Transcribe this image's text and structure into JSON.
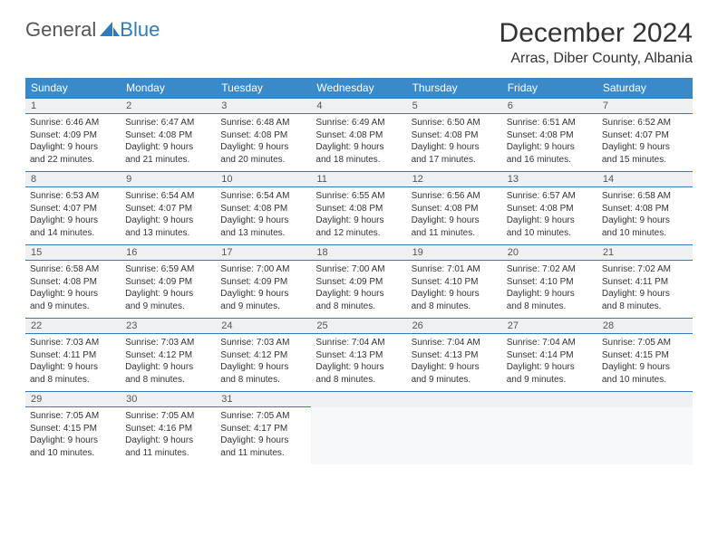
{
  "logo": {
    "part1": "General",
    "part2": "Blue"
  },
  "title": "December 2024",
  "location": "Arras, Diber County, Albania",
  "colors": {
    "header_bg": "#3a8ac9",
    "rule": "#2d7cc1",
    "number_bg": "#eef0f2",
    "text": "#333333"
  },
  "day_labels": [
    "Sunday",
    "Monday",
    "Tuesday",
    "Wednesday",
    "Thursday",
    "Friday",
    "Saturday"
  ],
  "weeks": [
    [
      {
        "n": "1",
        "sr": "Sunrise: 6:46 AM",
        "ss": "Sunset: 4:09 PM",
        "d1": "Daylight: 9 hours",
        "d2": "and 22 minutes."
      },
      {
        "n": "2",
        "sr": "Sunrise: 6:47 AM",
        "ss": "Sunset: 4:08 PM",
        "d1": "Daylight: 9 hours",
        "d2": "and 21 minutes."
      },
      {
        "n": "3",
        "sr": "Sunrise: 6:48 AM",
        "ss": "Sunset: 4:08 PM",
        "d1": "Daylight: 9 hours",
        "d2": "and 20 minutes."
      },
      {
        "n": "4",
        "sr": "Sunrise: 6:49 AM",
        "ss": "Sunset: 4:08 PM",
        "d1": "Daylight: 9 hours",
        "d2": "and 18 minutes."
      },
      {
        "n": "5",
        "sr": "Sunrise: 6:50 AM",
        "ss": "Sunset: 4:08 PM",
        "d1": "Daylight: 9 hours",
        "d2": "and 17 minutes."
      },
      {
        "n": "6",
        "sr": "Sunrise: 6:51 AM",
        "ss": "Sunset: 4:08 PM",
        "d1": "Daylight: 9 hours",
        "d2": "and 16 minutes."
      },
      {
        "n": "7",
        "sr": "Sunrise: 6:52 AM",
        "ss": "Sunset: 4:07 PM",
        "d1": "Daylight: 9 hours",
        "d2": "and 15 minutes."
      }
    ],
    [
      {
        "n": "8",
        "sr": "Sunrise: 6:53 AM",
        "ss": "Sunset: 4:07 PM",
        "d1": "Daylight: 9 hours",
        "d2": "and 14 minutes."
      },
      {
        "n": "9",
        "sr": "Sunrise: 6:54 AM",
        "ss": "Sunset: 4:07 PM",
        "d1": "Daylight: 9 hours",
        "d2": "and 13 minutes."
      },
      {
        "n": "10",
        "sr": "Sunrise: 6:54 AM",
        "ss": "Sunset: 4:08 PM",
        "d1": "Daylight: 9 hours",
        "d2": "and 13 minutes."
      },
      {
        "n": "11",
        "sr": "Sunrise: 6:55 AM",
        "ss": "Sunset: 4:08 PM",
        "d1": "Daylight: 9 hours",
        "d2": "and 12 minutes."
      },
      {
        "n": "12",
        "sr": "Sunrise: 6:56 AM",
        "ss": "Sunset: 4:08 PM",
        "d1": "Daylight: 9 hours",
        "d2": "and 11 minutes."
      },
      {
        "n": "13",
        "sr": "Sunrise: 6:57 AM",
        "ss": "Sunset: 4:08 PM",
        "d1": "Daylight: 9 hours",
        "d2": "and 10 minutes."
      },
      {
        "n": "14",
        "sr": "Sunrise: 6:58 AM",
        "ss": "Sunset: 4:08 PM",
        "d1": "Daylight: 9 hours",
        "d2": "and 10 minutes."
      }
    ],
    [
      {
        "n": "15",
        "sr": "Sunrise: 6:58 AM",
        "ss": "Sunset: 4:08 PM",
        "d1": "Daylight: 9 hours",
        "d2": "and 9 minutes."
      },
      {
        "n": "16",
        "sr": "Sunrise: 6:59 AM",
        "ss": "Sunset: 4:09 PM",
        "d1": "Daylight: 9 hours",
        "d2": "and 9 minutes."
      },
      {
        "n": "17",
        "sr": "Sunrise: 7:00 AM",
        "ss": "Sunset: 4:09 PM",
        "d1": "Daylight: 9 hours",
        "d2": "and 9 minutes."
      },
      {
        "n": "18",
        "sr": "Sunrise: 7:00 AM",
        "ss": "Sunset: 4:09 PM",
        "d1": "Daylight: 9 hours",
        "d2": "and 8 minutes."
      },
      {
        "n": "19",
        "sr": "Sunrise: 7:01 AM",
        "ss": "Sunset: 4:10 PM",
        "d1": "Daylight: 9 hours",
        "d2": "and 8 minutes."
      },
      {
        "n": "20",
        "sr": "Sunrise: 7:02 AM",
        "ss": "Sunset: 4:10 PM",
        "d1": "Daylight: 9 hours",
        "d2": "and 8 minutes."
      },
      {
        "n": "21",
        "sr": "Sunrise: 7:02 AM",
        "ss": "Sunset: 4:11 PM",
        "d1": "Daylight: 9 hours",
        "d2": "and 8 minutes."
      }
    ],
    [
      {
        "n": "22",
        "sr": "Sunrise: 7:03 AM",
        "ss": "Sunset: 4:11 PM",
        "d1": "Daylight: 9 hours",
        "d2": "and 8 minutes."
      },
      {
        "n": "23",
        "sr": "Sunrise: 7:03 AM",
        "ss": "Sunset: 4:12 PM",
        "d1": "Daylight: 9 hours",
        "d2": "and 8 minutes."
      },
      {
        "n": "24",
        "sr": "Sunrise: 7:03 AM",
        "ss": "Sunset: 4:12 PM",
        "d1": "Daylight: 9 hours",
        "d2": "and 8 minutes."
      },
      {
        "n": "25",
        "sr": "Sunrise: 7:04 AM",
        "ss": "Sunset: 4:13 PM",
        "d1": "Daylight: 9 hours",
        "d2": "and 8 minutes."
      },
      {
        "n": "26",
        "sr": "Sunrise: 7:04 AM",
        "ss": "Sunset: 4:13 PM",
        "d1": "Daylight: 9 hours",
        "d2": "and 9 minutes."
      },
      {
        "n": "27",
        "sr": "Sunrise: 7:04 AM",
        "ss": "Sunset: 4:14 PM",
        "d1": "Daylight: 9 hours",
        "d2": "and 9 minutes."
      },
      {
        "n": "28",
        "sr": "Sunrise: 7:05 AM",
        "ss": "Sunset: 4:15 PM",
        "d1": "Daylight: 9 hours",
        "d2": "and 10 minutes."
      }
    ],
    [
      {
        "n": "29",
        "sr": "Sunrise: 7:05 AM",
        "ss": "Sunset: 4:15 PM",
        "d1": "Daylight: 9 hours",
        "d2": "and 10 minutes."
      },
      {
        "n": "30",
        "sr": "Sunrise: 7:05 AM",
        "ss": "Sunset: 4:16 PM",
        "d1": "Daylight: 9 hours",
        "d2": "and 11 minutes."
      },
      {
        "n": "31",
        "sr": "Sunrise: 7:05 AM",
        "ss": "Sunset: 4:17 PM",
        "d1": "Daylight: 9 hours",
        "d2": "and 11 minutes."
      },
      null,
      null,
      null,
      null
    ]
  ]
}
